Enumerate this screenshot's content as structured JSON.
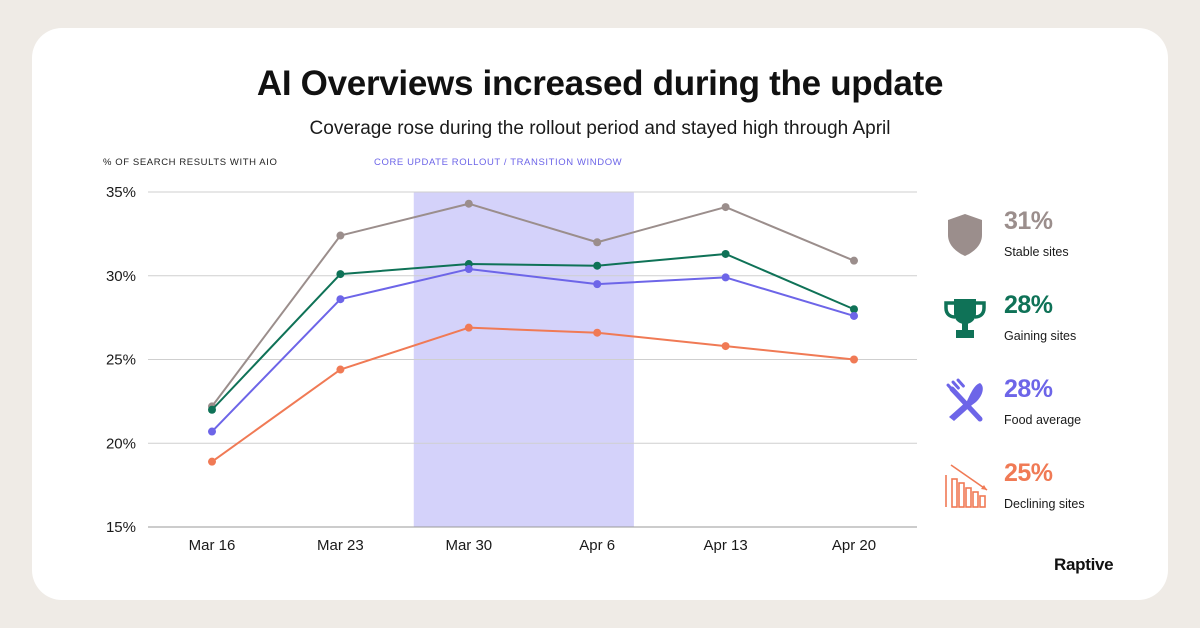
{
  "title": "AI Overviews increased during the update",
  "subtitle": "Coverage rose during the rollout period and stayed high through April",
  "brand": "Raptive",
  "chart_data": {
    "type": "line",
    "ylabel": "% OF SEARCH RESULTS WITH AIO",
    "xlabel": "",
    "categories": [
      "Mar 16",
      "Mar 23",
      "Mar 30",
      "Apr 6",
      "Apr 13",
      "Apr 20"
    ],
    "ylim": [
      15,
      35
    ],
    "yticks": [
      35,
      30,
      25,
      20,
      15
    ],
    "ytick_labels": [
      "35%",
      "30%",
      "25%",
      "20%",
      "15%"
    ],
    "grid": true,
    "band": {
      "label": "CORE UPDATE ROLLOUT / TRANSITION WINDOW",
      "from": "Mar 27",
      "to": "Apr 8",
      "color": "#d4d2fa"
    },
    "series": [
      {
        "key": "stable",
        "color": "#9b8e8c",
        "values": [
          22.2,
          32.4,
          34.3,
          32.0,
          34.1,
          30.9
        ]
      },
      {
        "key": "gaining",
        "color": "#0f7257",
        "values": [
          22.0,
          30.1,
          30.7,
          30.6,
          31.3,
          28.0
        ]
      },
      {
        "key": "food",
        "color": "#6d65e8",
        "values": [
          20.7,
          28.6,
          30.4,
          29.5,
          29.9,
          27.6
        ]
      },
      {
        "key": "declining",
        "color": "#f07a55",
        "values": [
          18.9,
          24.4,
          26.9,
          26.6,
          25.8,
          25.0
        ]
      }
    ]
  },
  "legend": [
    {
      "value": "31%",
      "label": "Stable sites",
      "color": "#9b8e8c",
      "icon": "shield-icon"
    },
    {
      "value": "28%",
      "label": "Gaining sites",
      "color": "#0f7257",
      "icon": "trophy-icon"
    },
    {
      "value": "28%",
      "label": "Food average",
      "color": "#6d65e8",
      "icon": "fork-knife-icon"
    },
    {
      "value": "25%",
      "label": "Declining sites",
      "color": "#f07a55",
      "icon": "declining-bars-icon"
    }
  ]
}
